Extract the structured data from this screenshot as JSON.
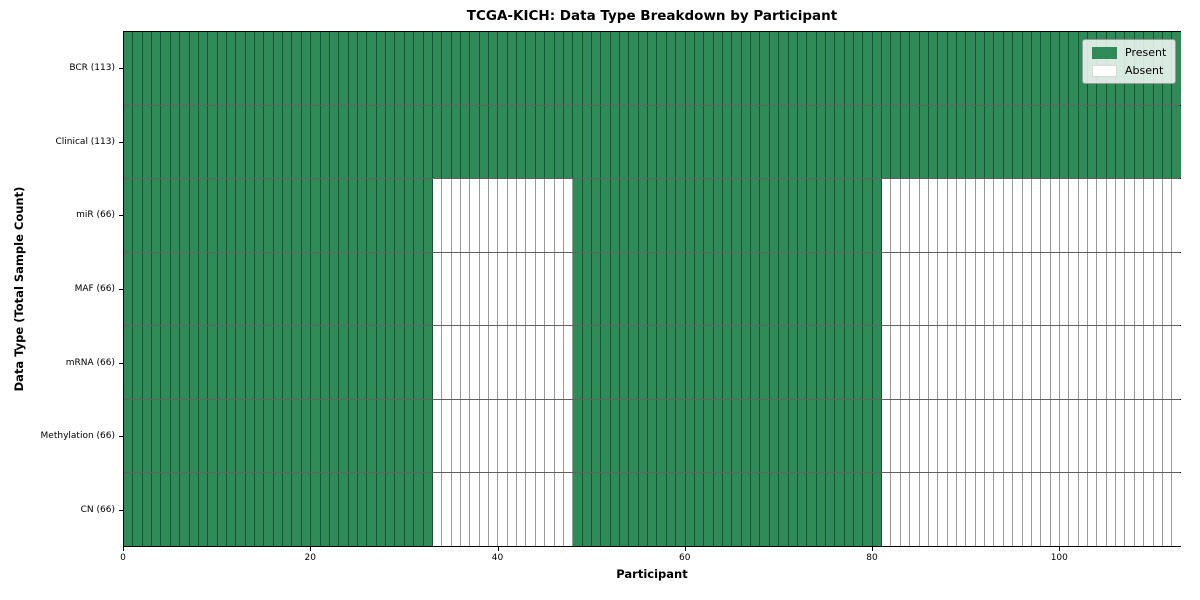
{
  "chart_data": {
    "type": "heatmap",
    "title": "TCGA-KICH: Data Type Breakdown by Participant",
    "xlabel": "Participant",
    "ylabel": "Data Type (Total Sample Count)",
    "x_range": [
      0,
      113
    ],
    "n_participants": 113,
    "x_ticks": [
      0,
      20,
      40,
      60,
      80,
      100
    ],
    "grid": false,
    "legend_position": "upper right",
    "colors": {
      "present": "#2e8b57",
      "absent": "#ffffff",
      "cell_edge": "rgba(0,0,0,0.40)"
    },
    "legend": [
      {
        "label": "Present",
        "key": "present",
        "color": "#2e8b57"
      },
      {
        "label": "Absent",
        "key": "absent",
        "color": "#ffffff"
      }
    ],
    "rows": [
      {
        "label": "BCR (113)",
        "data_type": "BCR",
        "total_samples": 113,
        "present_ranges": [
          [
            0,
            113
          ]
        ]
      },
      {
        "label": "Clinical (113)",
        "data_type": "Clinical",
        "total_samples": 113,
        "present_ranges": [
          [
            0,
            113
          ]
        ]
      },
      {
        "label": "miR (66)",
        "data_type": "miR",
        "total_samples": 66,
        "present_ranges": [
          [
            0,
            33
          ],
          [
            48,
            81
          ]
        ]
      },
      {
        "label": "MAF (66)",
        "data_type": "MAF",
        "total_samples": 66,
        "present_ranges": [
          [
            0,
            33
          ],
          [
            48,
            81
          ]
        ]
      },
      {
        "label": "mRNA (66)",
        "data_type": "mRNA",
        "total_samples": 66,
        "present_ranges": [
          [
            0,
            33
          ],
          [
            48,
            81
          ]
        ]
      },
      {
        "label": "Methylation (66)",
        "data_type": "Methylation",
        "total_samples": 66,
        "present_ranges": [
          [
            0,
            33
          ],
          [
            48,
            81
          ]
        ]
      },
      {
        "label": "CN (66)",
        "data_type": "CN",
        "total_samples": 66,
        "present_ranges": [
          [
            0,
            33
          ],
          [
            48,
            81
          ]
        ]
      }
    ]
  }
}
